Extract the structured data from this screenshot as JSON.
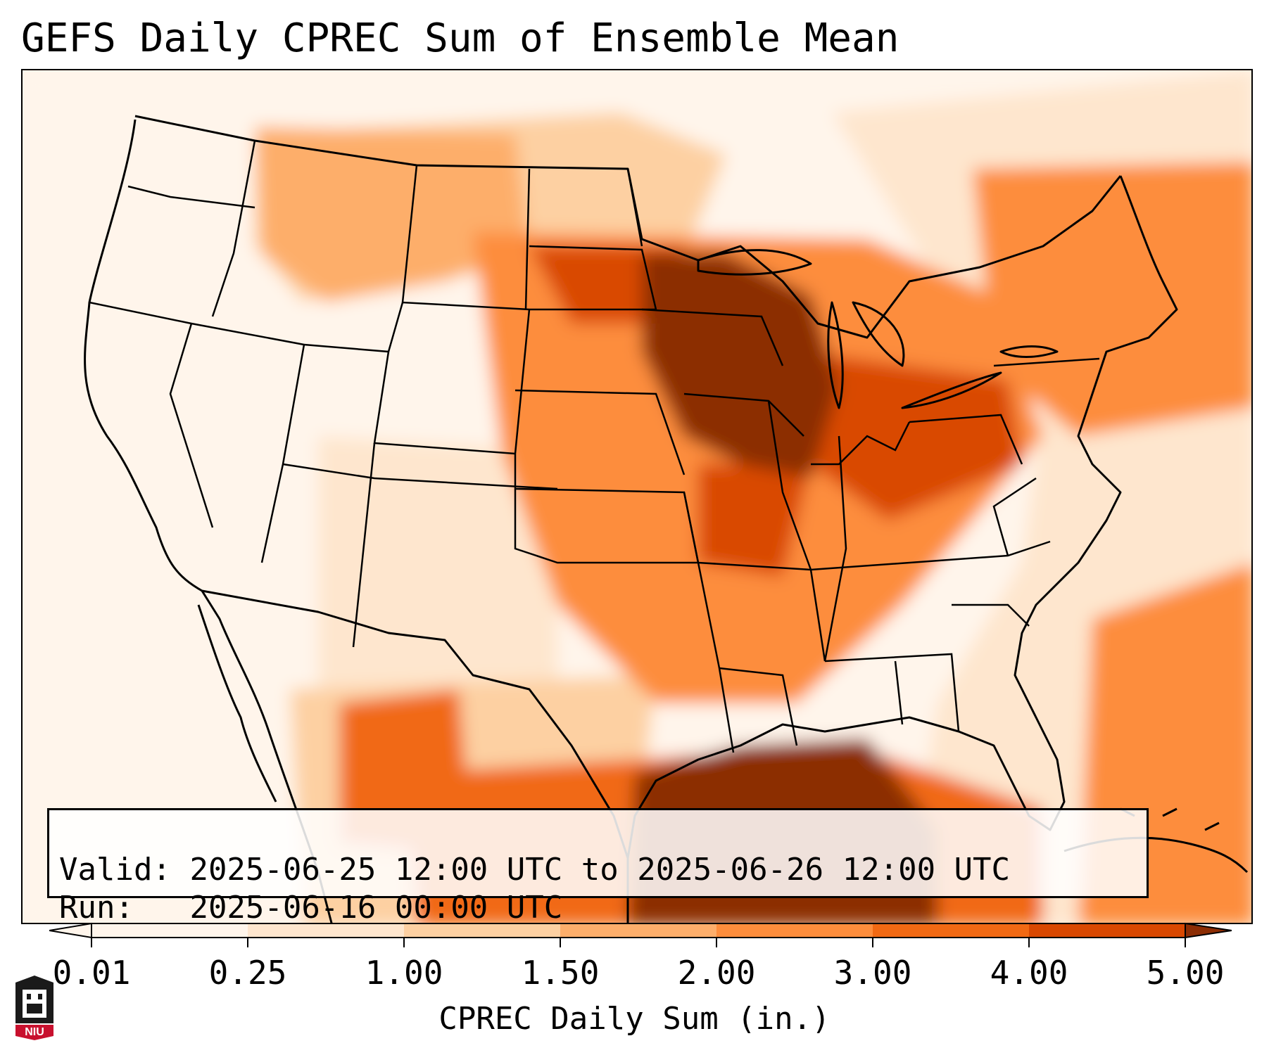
{
  "title": "GEFS Daily CPREC Sum of Ensemble Mean",
  "validity": {
    "valid_label": "Valid:",
    "valid_range": "2025-06-25 12:00 UTC to 2025-06-26 12:00 UTC",
    "run_label": "Run:",
    "run_time": "2025-06-16 00:00 UTC"
  },
  "colorbar": {
    "label": "CPREC Daily Sum (in.)",
    "ticks": [
      "0.01",
      "0.25",
      "1.00",
      "1.50",
      "2.00",
      "3.00",
      "4.00",
      "5.00"
    ],
    "colors": [
      "#fff5eb",
      "#fee6ce",
      "#fdd0a2",
      "#fdae6b",
      "#fd8d3c",
      "#f16913",
      "#d94801",
      "#8c2d04"
    ],
    "extend": "both"
  },
  "map": {
    "projection": "Lambert conformal, CONUS",
    "boundaries": [
      "coastlines",
      "country borders",
      "US state borders"
    ],
    "field": "GEFS ensemble mean convective precipitation, daily sum (in.)"
  },
  "logo": {
    "name": "NIU",
    "text": "NIU"
  }
}
